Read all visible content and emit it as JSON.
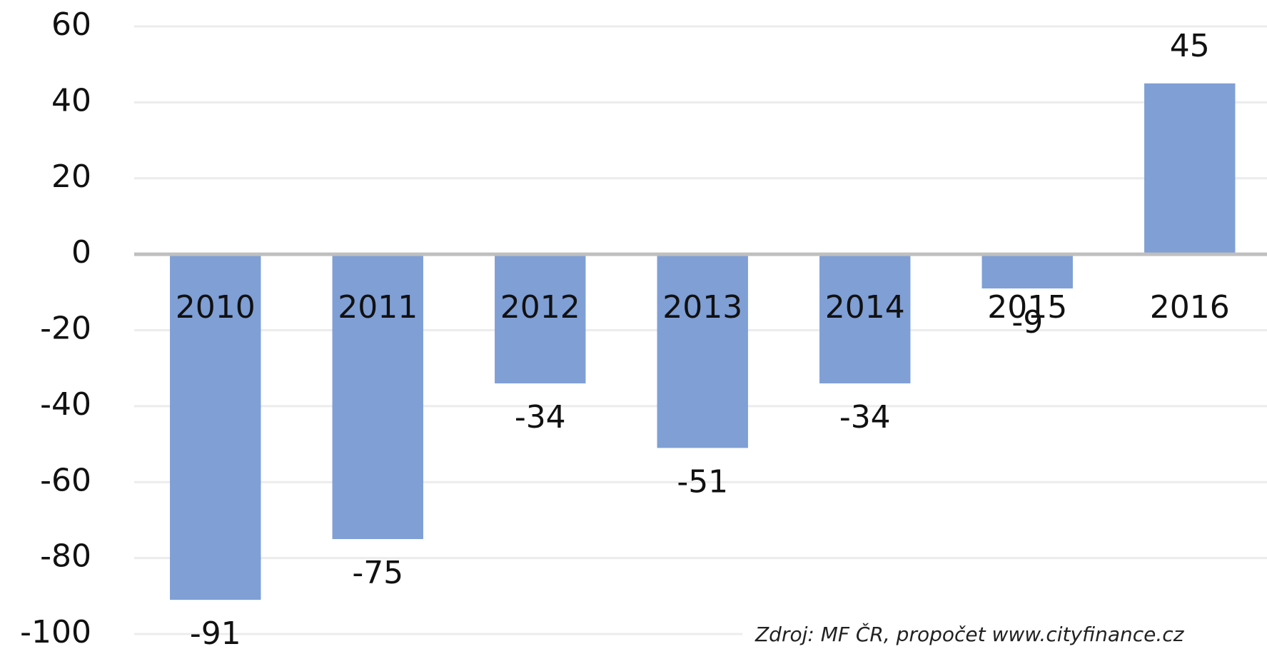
{
  "chart_data": {
    "type": "bar",
    "categories": [
      "2010",
      "2011",
      "2012",
      "2013",
      "2014",
      "2015",
      "2016"
    ],
    "values": [
      -91,
      -75,
      -34,
      -51,
      -34,
      -9,
      45
    ],
    "color": "#7f9fd5",
    "ylim": [
      -100,
      60
    ],
    "yticks": [
      -100,
      -80,
      -60,
      -40,
      -20,
      0,
      20,
      40,
      60
    ],
    "grid": true,
    "annotation": "Zdroj: MF ČR, propočet www.cityfinance.cz"
  }
}
